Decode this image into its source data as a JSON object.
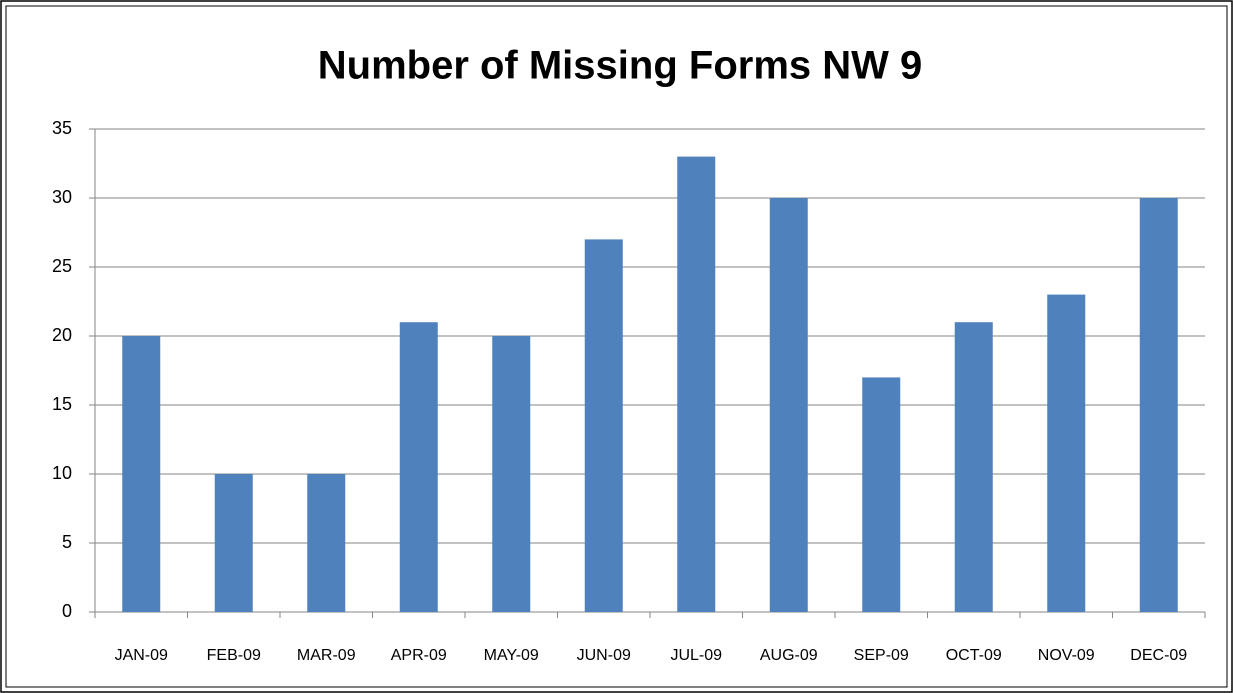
{
  "chart_data": {
    "type": "bar",
    "title": "Number of Missing Forms NW 9",
    "categories": [
      "JAN-09",
      "FEB-09",
      "MAR-09",
      "APR-09",
      "MAY-09",
      "JUN-09",
      "JUL-09",
      "AUG-09",
      "SEP-09",
      "OCT-09",
      "NOV-09",
      "DEC-09"
    ],
    "values": [
      20,
      10,
      10,
      21,
      20,
      27,
      33,
      30,
      17,
      21,
      23,
      30
    ],
    "color": "#4f81bd",
    "ylim": [
      0,
      35
    ],
    "yticks": [
      0,
      5,
      10,
      15,
      20,
      25,
      30,
      35
    ],
    "grid": true
  }
}
